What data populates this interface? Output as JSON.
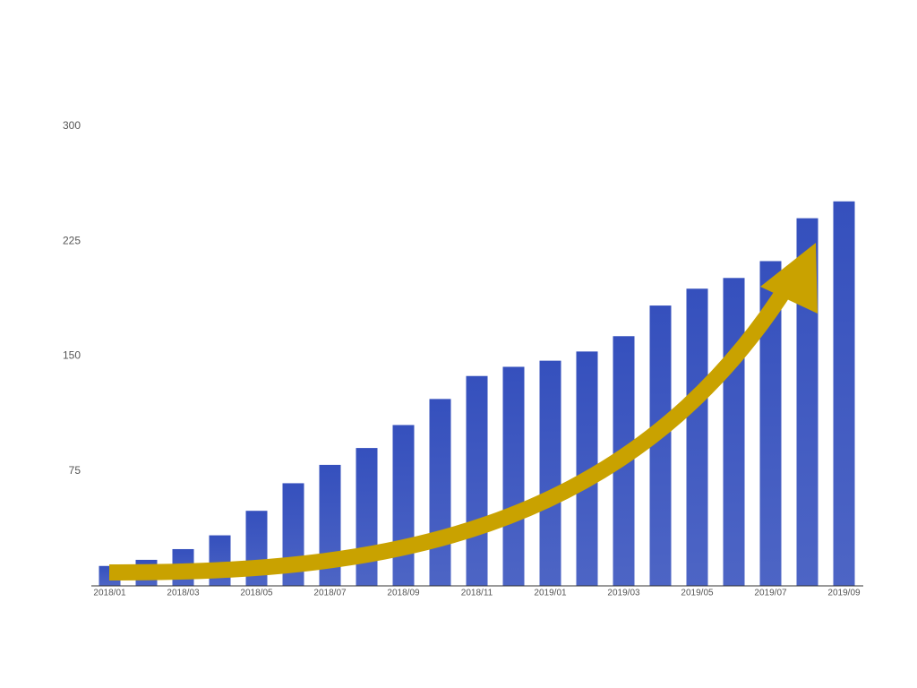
{
  "chart_data": {
    "type": "bar",
    "categories": [
      "2018/01",
      null,
      "2018/03",
      null,
      "2018/05",
      null,
      "2018/07",
      null,
      "2018/09",
      null,
      "2018/11",
      null,
      "2019/01",
      null,
      "2019/03",
      null,
      "2019/05",
      null,
      "2019/07",
      null,
      "2019/09"
    ],
    "values": [
      13,
      17,
      24,
      33,
      49,
      67,
      79,
      90,
      105,
      122,
      137,
      143,
      147,
      153,
      163,
      183,
      194,
      201,
      212,
      240,
      251
    ],
    "color": "#3550bd",
    "ylim": [
      0,
      300
    ],
    "yticks": [
      75,
      150,
      225,
      300
    ],
    "grid": false
  }
}
